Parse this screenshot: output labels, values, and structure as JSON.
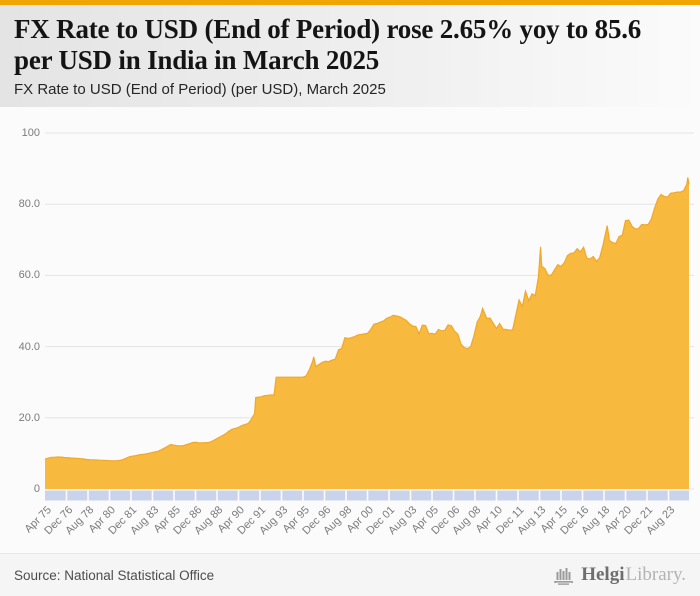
{
  "accent_color": "#F0A502",
  "header": {
    "title": "FX Rate to USD (End of Period) rose 2.65% yoy to 85.6 per USD in India in March 2025",
    "subtitle": "FX Rate to USD (End of Period) (per USD), March 2025"
  },
  "footer": {
    "source": "Source: National Statistical Office",
    "logo_primary": "Helgi",
    "logo_secondary": "Library."
  },
  "chart_data": {
    "type": "area",
    "title": "FX Rate to USD (End of Period) (per USD), March 2025",
    "xlabel": "",
    "ylabel": "",
    "ylim": [
      0,
      100
    ],
    "x_range": [
      1975.25,
      2025.17
    ],
    "grid": "horizontal",
    "legend": "none",
    "y_ticks": [
      {
        "value": 0,
        "label": "0"
      },
      {
        "value": 20,
        "label": "20.0"
      },
      {
        "value": 40,
        "label": "40.0"
      },
      {
        "value": 60,
        "label": "60.0"
      },
      {
        "value": 80,
        "label": "80.0"
      },
      {
        "value": 100,
        "label": "100"
      }
    ],
    "x_ticks": [
      "Apr 75",
      "Dec 76",
      "Aug 78",
      "Apr 80",
      "Dec 81",
      "Aug 83",
      "Apr 85",
      "Dec 86",
      "Aug 88",
      "Apr 90",
      "Dec 91",
      "Aug 93",
      "Apr 95",
      "Dec 96",
      "Aug 98",
      "Apr 00",
      "Dec 01",
      "Aug 03",
      "Apr 05",
      "Dec 06",
      "Aug 08",
      "Apr 10",
      "Dec 11",
      "Aug 13",
      "Apr 15",
      "Dec 16",
      "Aug 18",
      "Apr 20",
      "Dec 21",
      "Aug 23"
    ],
    "x_tick_interval_months": 20,
    "colors": {
      "area_fill": "#F7B93E",
      "area_stroke": "#F0A82A",
      "grid": "#E4E4E4",
      "tick_band": "#C9D3EC",
      "tick_band_separator": "#FBFBFB",
      "axis_text": "#7B7B7B"
    },
    "series": [
      {
        "name": "FX Rate to USD (End of Period), India, per USD",
        "last_value": 85.6,
        "points": [
          [
            1975.25,
            8.4
          ],
          [
            1975.5,
            8.66
          ],
          [
            1975.75,
            8.91
          ],
          [
            1976,
            8.94
          ],
          [
            1976.25,
            9.0
          ],
          [
            1976.5,
            8.95
          ],
          [
            1976.75,
            8.86
          ],
          [
            1977,
            8.8
          ],
          [
            1977.25,
            8.72
          ],
          [
            1977.5,
            8.66
          ],
          [
            1977.75,
            8.6
          ],
          [
            1978,
            8.5
          ],
          [
            1978.25,
            8.42
          ],
          [
            1978.5,
            8.3
          ],
          [
            1978.75,
            8.22
          ],
          [
            1979,
            8.2
          ],
          [
            1979.25,
            8.15
          ],
          [
            1979.5,
            8.1
          ],
          [
            1979.75,
            8.05
          ],
          [
            1980,
            8.0
          ],
          [
            1980.25,
            7.95
          ],
          [
            1980.5,
            7.9
          ],
          [
            1980.75,
            7.92
          ],
          [
            1981,
            8.0
          ],
          [
            1981.25,
            8.2
          ],
          [
            1981.5,
            8.6
          ],
          [
            1981.75,
            9.0
          ],
          [
            1982,
            9.2
          ],
          [
            1982.25,
            9.35
          ],
          [
            1982.5,
            9.55
          ],
          [
            1982.75,
            9.7
          ],
          [
            1983,
            9.8
          ],
          [
            1983.25,
            10.0
          ],
          [
            1983.5,
            10.2
          ],
          [
            1983.75,
            10.4
          ],
          [
            1984,
            10.6
          ],
          [
            1984.25,
            11.0
          ],
          [
            1984.5,
            11.5
          ],
          [
            1984.75,
            12.0
          ],
          [
            1985,
            12.5
          ],
          [
            1985.25,
            12.3
          ],
          [
            1985.5,
            12.15
          ],
          [
            1985.75,
            12.1
          ],
          [
            1986,
            12.2
          ],
          [
            1986.25,
            12.5
          ],
          [
            1986.5,
            12.8
          ],
          [
            1986.75,
            13.1
          ],
          [
            1987,
            13.1
          ],
          [
            1987.25,
            12.9
          ],
          [
            1987.5,
            13.0
          ],
          [
            1987.75,
            13.0
          ],
          [
            1988,
            13.1
          ],
          [
            1988.25,
            13.5
          ],
          [
            1988.5,
            14.0
          ],
          [
            1988.75,
            14.5
          ],
          [
            1989,
            15.0
          ],
          [
            1989.25,
            15.5
          ],
          [
            1989.5,
            16.2
          ],
          [
            1989.75,
            16.8
          ],
          [
            1990,
            17.0
          ],
          [
            1990.25,
            17.3
          ],
          [
            1990.5,
            17.8
          ],
          [
            1990.75,
            18.1
          ],
          [
            1991,
            18.4
          ],
          [
            1991.25,
            19.6
          ],
          [
            1991.5,
            21.2
          ],
          [
            1991.58,
            25.7
          ],
          [
            1991.75,
            25.8
          ],
          [
            1992,
            25.9
          ],
          [
            1992.25,
            26.2
          ],
          [
            1992.5,
            26.3
          ],
          [
            1992.75,
            26.4
          ],
          [
            1993,
            26.4
          ],
          [
            1993.17,
            31.4
          ],
          [
            1993.5,
            31.4
          ],
          [
            1993.75,
            31.4
          ],
          [
            1994,
            31.4
          ],
          [
            1994.25,
            31.4
          ],
          [
            1994.5,
            31.4
          ],
          [
            1994.75,
            31.4
          ],
          [
            1995,
            31.4
          ],
          [
            1995.25,
            31.4
          ],
          [
            1995.5,
            31.8
          ],
          [
            1995.75,
            33.6
          ],
          [
            1996,
            35.9
          ],
          [
            1996.08,
            37.1
          ],
          [
            1996.25,
            34.4
          ],
          [
            1996.5,
            35.0
          ],
          [
            1996.75,
            35.6
          ],
          [
            1997,
            35.9
          ],
          [
            1997.25,
            35.8
          ],
          [
            1997.5,
            36.2
          ],
          [
            1997.75,
            36.5
          ],
          [
            1998,
            39.1
          ],
          [
            1998.25,
            39.5
          ],
          [
            1998.5,
            42.5
          ],
          [
            1998.75,
            42.3
          ],
          [
            1999,
            42.5
          ],
          [
            1999.25,
            42.8
          ],
          [
            1999.5,
            43.3
          ],
          [
            1999.75,
            43.4
          ],
          [
            2000,
            43.6
          ],
          [
            2000.25,
            43.7
          ],
          [
            2000.5,
            44.8
          ],
          [
            2000.75,
            46.3
          ],
          [
            2001,
            46.5
          ],
          [
            2001.25,
            46.9
          ],
          [
            2001.5,
            47.2
          ],
          [
            2001.75,
            48.0
          ],
          [
            2002,
            48.3
          ],
          [
            2002.25,
            48.8
          ],
          [
            2002.5,
            48.6
          ],
          [
            2002.75,
            48.4
          ],
          [
            2003,
            47.9
          ],
          [
            2003.25,
            47.4
          ],
          [
            2003.5,
            46.4
          ],
          [
            2003.75,
            45.8
          ],
          [
            2004,
            45.6
          ],
          [
            2004.25,
            43.6
          ],
          [
            2004.5,
            46.0
          ],
          [
            2004.75,
            45.9
          ],
          [
            2005,
            43.6
          ],
          [
            2005.25,
            43.7
          ],
          [
            2005.5,
            43.5
          ],
          [
            2005.75,
            44.8
          ],
          [
            2006,
            44.4
          ],
          [
            2006.25,
            44.6
          ],
          [
            2006.5,
            46.1
          ],
          [
            2006.75,
            45.9
          ],
          [
            2007,
            44.3
          ],
          [
            2007.25,
            43.5
          ],
          [
            2007.5,
            40.7
          ],
          [
            2007.75,
            39.7
          ],
          [
            2008,
            39.4
          ],
          [
            2008.25,
            40.0
          ],
          [
            2008.5,
            43.0
          ],
          [
            2008.75,
            46.9
          ],
          [
            2009,
            48.5
          ],
          [
            2009.17,
            50.7
          ],
          [
            2009.5,
            47.9
          ],
          [
            2009.75,
            48.0
          ],
          [
            2010,
            46.5
          ],
          [
            2010.25,
            45.1
          ],
          [
            2010.5,
            46.5
          ],
          [
            2010.75,
            44.9
          ],
          [
            2011,
            44.8
          ],
          [
            2011.25,
            44.6
          ],
          [
            2011.5,
            44.7
          ],
          [
            2011.75,
            49.0
          ],
          [
            2012,
            53.1
          ],
          [
            2012.25,
            51.2
          ],
          [
            2012.5,
            55.6
          ],
          [
            2012.75,
            52.9
          ],
          [
            2013,
            54.8
          ],
          [
            2013.25,
            54.3
          ],
          [
            2013.5,
            59.5
          ],
          [
            2013.67,
            68.0
          ],
          [
            2013.75,
            62.6
          ],
          [
            2014,
            61.9
          ],
          [
            2014.25,
            60.0
          ],
          [
            2014.5,
            60.1
          ],
          [
            2014.75,
            61.6
          ],
          [
            2015,
            63.0
          ],
          [
            2015.25,
            62.5
          ],
          [
            2015.5,
            63.6
          ],
          [
            2015.75,
            65.6
          ],
          [
            2016,
            66.2
          ],
          [
            2016.25,
            66.3
          ],
          [
            2016.5,
            67.5
          ],
          [
            2016.75,
            66.6
          ],
          [
            2017,
            67.9
          ],
          [
            2017.25,
            64.8
          ],
          [
            2017.5,
            64.6
          ],
          [
            2017.75,
            65.3
          ],
          [
            2018,
            63.9
          ],
          [
            2018.25,
            65.0
          ],
          [
            2018.5,
            68.5
          ],
          [
            2018.83,
            74.0
          ],
          [
            2019,
            69.8
          ],
          [
            2019.25,
            69.2
          ],
          [
            2019.5,
            69.0
          ],
          [
            2019.75,
            70.9
          ],
          [
            2020,
            71.3
          ],
          [
            2020.25,
            75.4
          ],
          [
            2020.5,
            75.5
          ],
          [
            2020.75,
            73.8
          ],
          [
            2021,
            73.1
          ],
          [
            2021.25,
            73.1
          ],
          [
            2021.5,
            74.3
          ],
          [
            2021.75,
            74.2
          ],
          [
            2022,
            74.3
          ],
          [
            2022.25,
            75.8
          ],
          [
            2022.5,
            78.9
          ],
          [
            2022.75,
            81.4
          ],
          [
            2023,
            82.7
          ],
          [
            2023.25,
            82.2
          ],
          [
            2023.5,
            82.0
          ],
          [
            2023.75,
            83.1
          ],
          [
            2024,
            83.2
          ],
          [
            2024.25,
            83.4
          ],
          [
            2024.5,
            83.4
          ],
          [
            2024.75,
            83.8
          ],
          [
            2025,
            85.6
          ],
          [
            2025.08,
            87.5
          ],
          [
            2025.17,
            85.6
          ]
        ]
      }
    ]
  }
}
